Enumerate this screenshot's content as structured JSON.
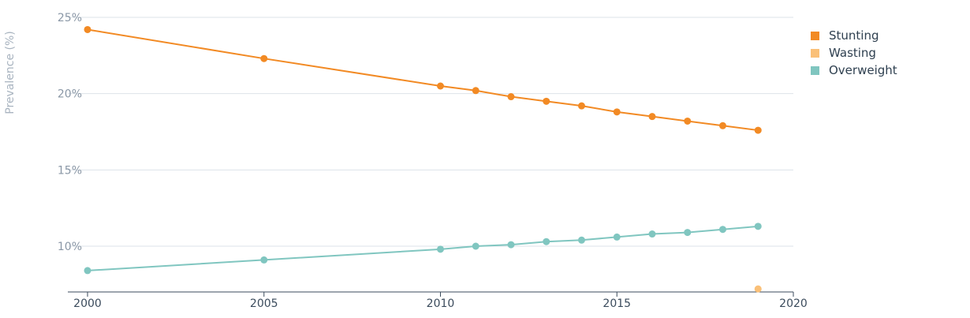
{
  "chart_data": {
    "type": "line",
    "ylabel": "Prevalence (%)",
    "xlim": [
      2000,
      2020
    ],
    "ylim": [
      7,
      25
    ],
    "x_ticks": [
      "2000",
      "2005",
      "2010",
      "2015",
      "2020"
    ],
    "y_ticks": [
      "10%",
      "15%",
      "20%",
      "25%"
    ],
    "grid": true,
    "legend_position": "top-right",
    "series": [
      {
        "name": "Stunting",
        "color": "#f28a24",
        "points": [
          [
            2000,
            24.2
          ],
          [
            2005,
            22.3
          ],
          [
            2010,
            20.5
          ],
          [
            2011,
            20.2
          ],
          [
            2012,
            19.8
          ],
          [
            2013,
            19.5
          ],
          [
            2014,
            19.2
          ],
          [
            2015,
            18.8
          ],
          [
            2016,
            18.5
          ],
          [
            2017,
            18.2
          ],
          [
            2018,
            17.9
          ],
          [
            2019,
            17.6
          ]
        ]
      },
      {
        "name": "Wasting",
        "color": "#fac078",
        "points": [
          [
            2019,
            7.2
          ]
        ]
      },
      {
        "name": "Overweight",
        "color": "#80c6c0",
        "points": [
          [
            2000,
            8.4
          ],
          [
            2005,
            9.1
          ],
          [
            2010,
            9.8
          ],
          [
            2011,
            10.0
          ],
          [
            2012,
            10.1
          ],
          [
            2013,
            10.3
          ],
          [
            2014,
            10.4
          ],
          [
            2015,
            10.6
          ],
          [
            2016,
            10.8
          ],
          [
            2017,
            10.9
          ],
          [
            2018,
            11.1
          ],
          [
            2019,
            11.3
          ]
        ]
      }
    ]
  }
}
